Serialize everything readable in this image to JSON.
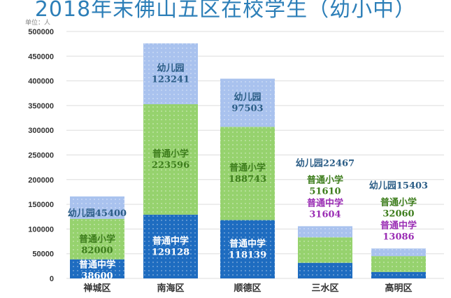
{
  "chart_data": {
    "type": "bar",
    "stacked": true,
    "title": "2018年末佛山五区在校学生（幼小中）",
    "unit_label": "单位：人",
    "categories": [
      "禅城区",
      "南海区",
      "顺德区",
      "三水区",
      "高明区"
    ],
    "series": [
      {
        "name": "普通中学",
        "values": [
          38600,
          129128,
          118139,
          31604,
          13086
        ],
        "color": "#1e6cc0"
      },
      {
        "name": "普通小学",
        "values": [
          82000,
          223596,
          188743,
          51610,
          32060
        ],
        "color": "#96d26e"
      },
      {
        "name": "幼儿园",
        "values": [
          45400,
          123241,
          97503,
          22467,
          15403
        ],
        "color": "#a9c2ee"
      }
    ],
    "ylim": [
      0,
      500000
    ],
    "yticks": [
      0,
      50000,
      100000,
      150000,
      200000,
      250000,
      300000,
      350000,
      400000,
      450000,
      500000
    ],
    "grid": true,
    "label_colors": {
      "幼儿园": "#2b5d86",
      "普通小学": "#3d7d1c",
      "普通中学_inside": "#ffffff",
      "普通中学_outside": "#9a2db4"
    }
  }
}
